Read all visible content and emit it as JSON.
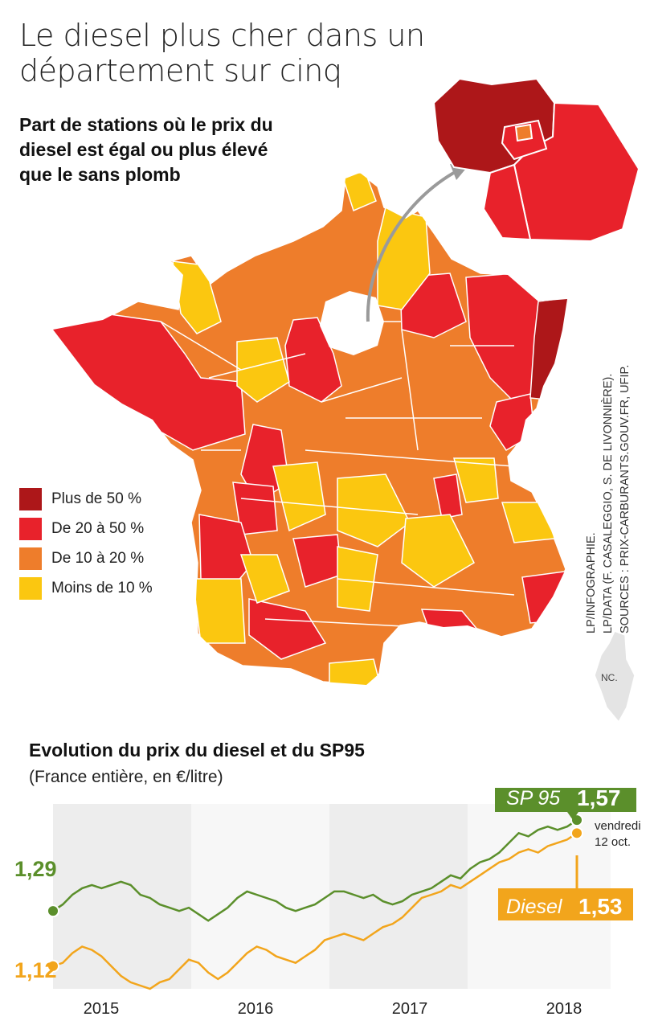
{
  "title": "Le diesel plus cher dans un département sur cinq",
  "subtitle": "Part de stations où le prix du diesel est égal ou plus élevé que le sans plomb",
  "colors": {
    "plus_50": "#ad1719",
    "de_20_50": "#e8222b",
    "de_10_20": "#ee7d2b",
    "moins_10": "#fbc710",
    "sp95": "#5b8f2b",
    "diesel": "#f2a51c"
  },
  "legend": [
    {
      "label": "Plus de 50 %",
      "color": "#ad1719"
    },
    {
      "label": "De 20 à 50 %",
      "color": "#e8222b"
    },
    {
      "label": "De 10 à 20 %",
      "color": "#ee7d2b"
    },
    {
      "label": "Moins de 10 %",
      "color": "#fbc710"
    }
  ],
  "credits": [
    "LP/INFOGRAPHIE.",
    "LP/DATA (F. CASALEGGIO, S. DE LIVONNIÈRE).",
    "SOURCES : PRIX-CARBURANTS.GOUV.FR, UFIP."
  ],
  "corsica_label": "NC.",
  "chart_data": {
    "type": "line",
    "title": "Evolution du prix du diesel et du SP95",
    "subtitle": "(France entière, en €/litre)",
    "x_labels": [
      "2015",
      "2016",
      "2017",
      "2018"
    ],
    "y_range": [
      1.05,
      1.62
    ],
    "series": [
      {
        "name": "SP 95",
        "color": "#5b8f2b",
        "start_label": "1,29",
        "end_label": "1,57",
        "values": [
          1.29,
          1.31,
          1.34,
          1.36,
          1.37,
          1.36,
          1.37,
          1.38,
          1.37,
          1.34,
          1.33,
          1.31,
          1.3,
          1.29,
          1.3,
          1.28,
          1.26,
          1.28,
          1.3,
          1.33,
          1.35,
          1.34,
          1.33,
          1.32,
          1.3,
          1.29,
          1.3,
          1.31,
          1.33,
          1.35,
          1.35,
          1.34,
          1.33,
          1.34,
          1.32,
          1.31,
          1.32,
          1.34,
          1.35,
          1.36,
          1.38,
          1.4,
          1.39,
          1.42,
          1.44,
          1.45,
          1.47,
          1.5,
          1.53,
          1.52,
          1.54,
          1.55,
          1.54,
          1.55,
          1.57
        ]
      },
      {
        "name": "Diesel",
        "color": "#f2a51c",
        "start_label": "1,12",
        "end_label": "1,53",
        "values": [
          1.12,
          1.13,
          1.16,
          1.18,
          1.17,
          1.15,
          1.12,
          1.09,
          1.07,
          1.06,
          1.05,
          1.07,
          1.08,
          1.11,
          1.14,
          1.13,
          1.1,
          1.08,
          1.1,
          1.13,
          1.16,
          1.18,
          1.17,
          1.15,
          1.14,
          1.13,
          1.15,
          1.17,
          1.2,
          1.21,
          1.22,
          1.21,
          1.2,
          1.22,
          1.24,
          1.25,
          1.27,
          1.3,
          1.33,
          1.34,
          1.35,
          1.37,
          1.36,
          1.38,
          1.4,
          1.42,
          1.44,
          1.45,
          1.47,
          1.48,
          1.47,
          1.49,
          1.5,
          1.51,
          1.53
        ]
      }
    ],
    "annotation": [
      "vendredi",
      "12 oct."
    ],
    "labels": {
      "sp95": "SP 95",
      "diesel": "Diesel"
    }
  }
}
